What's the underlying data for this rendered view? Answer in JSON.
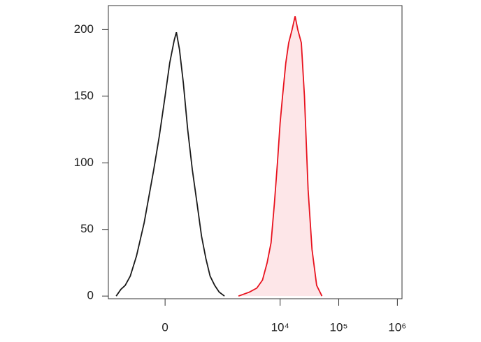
{
  "chart_data": {
    "type": "histogram-overlay",
    "xscale": "asinh",
    "xlim": [
      -1000,
      1200000
    ],
    "xticks": [
      0,
      {
        "value": 10000,
        "label": "10⁴"
      },
      {
        "value": 100000,
        "label": "10⁵"
      },
      {
        "value": 1000000,
        "label": "10⁶"
      }
    ],
    "ylim": [
      -2,
      218
    ],
    "yticks": [
      0,
      50,
      100,
      150,
      200
    ],
    "series": [
      {
        "color": "#1a1a1a",
        "x": [
          -728,
          -600,
          -500,
          -400,
          -300,
          -200,
          -100,
          -50,
          0,
          40,
          80,
          100,
          130,
          170,
          220,
          280,
          350,
          430,
          520,
          620,
          750,
          900,
          1113
        ],
        "values": [
          0,
          5,
          8,
          15,
          30,
          55,
          95,
          120,
          150,
          175,
          192,
          198,
          185,
          160,
          125,
          95,
          70,
          45,
          28,
          15,
          8,
          3,
          0
        ]
      },
      {
        "color": "#e8121e",
        "fill": "#fde6e8",
        "x": [
          1940,
          3000,
          4000,
          5000,
          6000,
          7000,
          8000,
          9000,
          10000,
          11000,
          12500,
          14000,
          16000,
          18000,
          20000,
          23000,
          26000,
          30000,
          35000,
          42000,
          51700
        ],
        "values": [
          0,
          3,
          6,
          12,
          25,
          40,
          70,
          100,
          130,
          150,
          175,
          190,
          200,
          210,
          200,
          190,
          150,
          80,
          35,
          8,
          0
        ]
      }
    ]
  }
}
